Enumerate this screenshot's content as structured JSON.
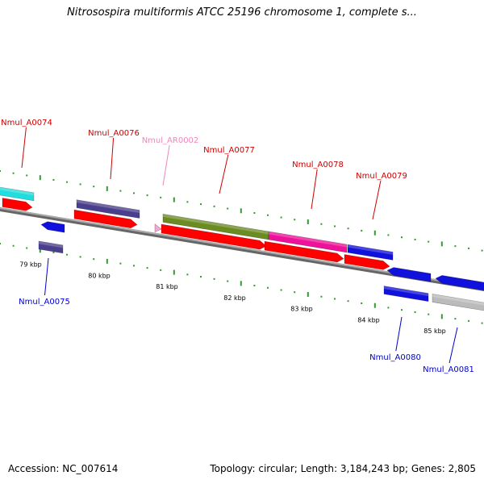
{
  "header": {
    "title": "Nitrosospira multiformis ATCC 25196 chromosome 1, complete s..."
  },
  "footer": {
    "accession": "Accession: NC_007614",
    "summary": "Topology: circular; Length: 3,184,243 bp; Genes: 2,805"
  },
  "scale": {
    "ticks": [
      "79 kbp",
      "80 kbp",
      "81 kbp",
      "82 kbp",
      "83 kbp",
      "84 kbp",
      "85 kbp"
    ]
  },
  "colors": {
    "cds_red": "#ff0000",
    "rna_pink": "#f4a7d1",
    "forward_label": "#cc0000",
    "reverse_label": "#0000cc",
    "tick_green": "#339933",
    "backbone": "#888888"
  },
  "features": [
    {
      "id": "Nmul_A0074",
      "label": "Nmul_A0074",
      "strand": "forward",
      "color": "#22dddd"
    },
    {
      "id": "Nmul_A0076",
      "label": "Nmul_A0076",
      "strand": "forward",
      "color": "#4a3f8c"
    },
    {
      "id": "Nmul_AR0002",
      "label": "Nmul_AR0002",
      "strand": "forward",
      "color": "#f4a7d1"
    },
    {
      "id": "Nmul_A0077",
      "label": "Nmul_A0077",
      "strand": "forward",
      "color": "#6b8c22"
    },
    {
      "id": "Nmul_A0078",
      "label": "Nmul_A0078",
      "strand": "forward",
      "color": "#ee1199"
    },
    {
      "id": "Nmul_A0079",
      "label": "Nmul_A0079",
      "strand": "forward",
      "color": "#1111dd"
    },
    {
      "id": "Nmul_A0075",
      "label": "Nmul_A0075",
      "strand": "reverse",
      "color": "#4a3f8c"
    },
    {
      "id": "Nmul_A0080",
      "label": "Nmul_A0080",
      "strand": "reverse",
      "color": "#1111dd"
    },
    {
      "id": "Nmul_A0081",
      "label": "Nmul_A0081",
      "strand": "reverse",
      "color": "#bbbbbb"
    }
  ]
}
